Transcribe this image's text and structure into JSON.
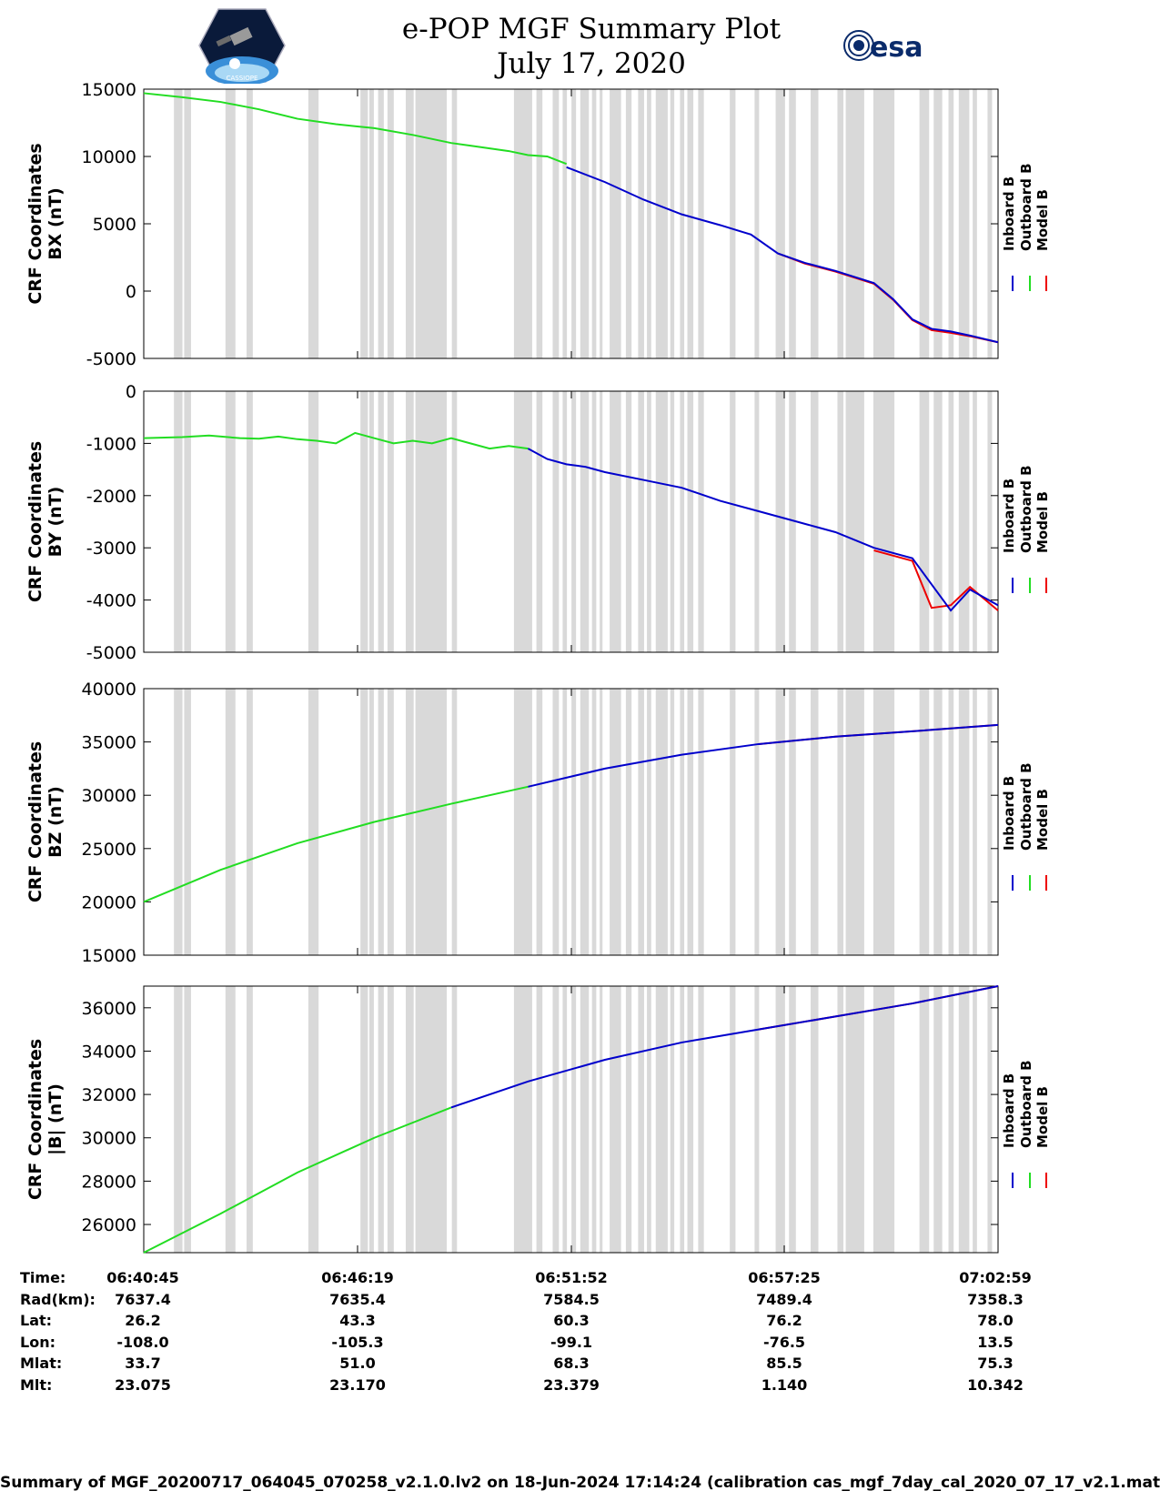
{
  "header": {
    "title": "e-POP MGF Summary Plot",
    "date": "July 17, 2020",
    "mission_logo_text": "CASSIOPE",
    "agency_logo_text": "esa"
  },
  "legend": {
    "labels": [
      "Inboard B",
      "Outboard B",
      "Model B"
    ],
    "colors": [
      "#0000cc",
      "#22dd22",
      "#ee0000"
    ]
  },
  "gap_color": "#d9d9d9",
  "data_gaps_minutes": [
    [
      1.06,
      1.36
    ],
    [
      1.42,
      1.66
    ],
    [
      2.87,
      3.22
    ],
    [
      3.61,
      3.83
    ],
    [
      5.78,
      6.14
    ],
    [
      7.61,
      7.87
    ],
    [
      7.92,
      8.08
    ],
    [
      8.23,
      8.43
    ],
    [
      8.56,
      8.78
    ],
    [
      9.2,
      9.48
    ],
    [
      9.54,
      10.64
    ],
    [
      10.82,
      11.0
    ],
    [
      13.0,
      13.64
    ],
    [
      13.79,
      14.0
    ],
    [
      14.36,
      14.58
    ],
    [
      14.71,
      14.86
    ],
    [
      15.02,
      15.18
    ],
    [
      15.33,
      15.63
    ],
    [
      15.74,
      15.89
    ],
    [
      16.01,
      16.11
    ],
    [
      16.36,
      16.76
    ],
    [
      16.93,
      17.13
    ],
    [
      17.36,
      17.57
    ],
    [
      17.67,
      17.82
    ],
    [
      17.98,
      18.4
    ],
    [
      18.49,
      18.63
    ],
    [
      18.83,
      18.98
    ],
    [
      19.09,
      19.3
    ],
    [
      19.47,
      19.67
    ],
    [
      20.58,
      20.78
    ],
    [
      21.45,
      21.61
    ],
    [
      22.19,
      22.52
    ],
    [
      22.66,
      22.9
    ],
    [
      23.42,
      23.69
    ],
    [
      24.36,
      24.57
    ],
    [
      24.65,
      25.3
    ],
    [
      25.62,
      26.36
    ],
    [
      27.24,
      27.58
    ],
    [
      27.74,
      28.04
    ],
    [
      28.26,
      28.44
    ],
    [
      28.62,
      28.99
    ],
    [
      29.11,
      29.26
    ],
    [
      29.63,
      29.79
    ]
  ],
  "chart_data": [
    {
      "type": "line",
      "title": "e-POP MGF Summary Plot",
      "ylabel": [
        "CRF Coordinates",
        "BX (nT)"
      ],
      "ylim": [
        -5000,
        15000
      ],
      "yticks": [
        -5000,
        0,
        5000,
        10000,
        15000
      ],
      "xlim": [
        0,
        22.23
      ],
      "series": [
        {
          "name": "Outboard B",
          "color": "#22dd22",
          "x": [
            0,
            1,
            2,
            3,
            4,
            5,
            5.5,
            6,
            7,
            8,
            8.5,
            9,
            9.5,
            10,
            10.5,
            11
          ],
          "y": [
            14700,
            14400,
            14050,
            13500,
            12800,
            12400,
            12250,
            12100,
            11600,
            11000,
            10800,
            10600,
            10400,
            10100,
            10000,
            9450
          ]
        },
        {
          "name": "Inboard B",
          "color": "#0000cc",
          "x": [
            11,
            12,
            13,
            14,
            15,
            15.8,
            16.5,
            17.2,
            18,
            19,
            19.5,
            20,
            20.5,
            21,
            21.5,
            22.23
          ],
          "y": [
            9200,
            8100,
            6800,
            5700,
            4900,
            4200,
            2800,
            2100,
            1500,
            600,
            -600,
            -2100,
            -2800,
            -3000,
            -3300,
            -3800
          ]
        },
        {
          "name": "Model B",
          "color": "#ee0000",
          "x": [
            16.5,
            17.2,
            18,
            19,
            19.5,
            20,
            20.5,
            21,
            21.5,
            22.23
          ],
          "y": [
            2800,
            2050,
            1450,
            550,
            -650,
            -2150,
            -2900,
            -3100,
            -3350,
            -3800
          ]
        }
      ]
    },
    {
      "type": "line",
      "ylabel": [
        "CRF Coordinates",
        "BY (nT)"
      ],
      "ylim": [
        -5000,
        0
      ],
      "yticks": [
        -5000,
        -4000,
        -3000,
        -2000,
        -1000,
        0
      ],
      "xlim": [
        0,
        22.23
      ],
      "series": [
        {
          "name": "Outboard B",
          "color": "#22dd22",
          "x": [
            0,
            1,
            1.7,
            2.5,
            3,
            3.5,
            4,
            4.5,
            5,
            5.5,
            6,
            6.5,
            7,
            7.5,
            8,
            8.5,
            9,
            9.5,
            10
          ],
          "y": [
            -900,
            -880,
            -850,
            -900,
            -910,
            -870,
            -920,
            -950,
            -1000,
            -800,
            -900,
            -1000,
            -950,
            -1000,
            -900,
            -1000,
            -1100,
            -1050,
            -1100
          ]
        },
        {
          "name": "Inboard B",
          "color": "#0000cc",
          "x": [
            10,
            10.5,
            11,
            11.5,
            12,
            13,
            14,
            15,
            16,
            16.5,
            17,
            17.5,
            18,
            19,
            20,
            21,
            21.5,
            22.23
          ],
          "y": [
            -1100,
            -1300,
            -1400,
            -1450,
            -1550,
            -1700,
            -1850,
            -2100,
            -2300,
            -2400,
            -2500,
            -2600,
            -2700,
            -3000,
            -3200,
            -4200,
            -3800,
            -4100
          ]
        },
        {
          "name": "Model B",
          "color": "#ee0000",
          "x": [
            19,
            20,
            20.5,
            21,
            21.5,
            22.23
          ],
          "y": [
            -3050,
            -3250,
            -4150,
            -4100,
            -3750,
            -4200
          ]
        }
      ]
    },
    {
      "type": "line",
      "ylabel": [
        "CRF Coordinates",
        "BZ (nT)"
      ],
      "ylim": [
        15000,
        40000
      ],
      "yticks": [
        15000,
        20000,
        25000,
        30000,
        35000,
        40000
      ],
      "xlim": [
        0,
        22.23
      ],
      "series": [
        {
          "name": "Outboard B",
          "color": "#22dd22",
          "x": [
            0,
            2,
            4,
            6,
            8,
            10
          ],
          "y": [
            20000,
            23000,
            25500,
            27500,
            29200,
            30800
          ]
        },
        {
          "name": "Inboard B",
          "color": "#0000cc",
          "x": [
            10,
            12,
            14,
            16,
            18,
            20,
            22.23
          ],
          "y": [
            30800,
            32500,
            33800,
            34800,
            35500,
            36000,
            36600
          ]
        },
        {
          "name": "Model B",
          "color": "#ee0000",
          "x": [
            16,
            18,
            20,
            22.23
          ],
          "y": [
            34800,
            35500,
            36000,
            36600
          ]
        }
      ]
    },
    {
      "type": "line",
      "ylabel": [
        "CRF Coordinates",
        "|B| (nT)"
      ],
      "ylim": [
        24700,
        37000
      ],
      "yticks": [
        26000,
        28000,
        30000,
        32000,
        34000,
        36000
      ],
      "xlim": [
        0,
        22.23
      ],
      "series": [
        {
          "name": "Outboard B",
          "color": "#22dd22",
          "x": [
            0,
            2,
            4,
            6,
            8
          ],
          "y": [
            24700,
            26500,
            28400,
            30000,
            31400
          ]
        },
        {
          "name": "Inboard B",
          "color": "#0000cc",
          "x": [
            8,
            10,
            12,
            14,
            16,
            18,
            20,
            22.23
          ],
          "y": [
            31400,
            32600,
            33600,
            34400,
            35000,
            35600,
            36200,
            37000
          ]
        },
        {
          "name": "Model B",
          "color": "#ee0000",
          "x": [
            16,
            18,
            20,
            22.23
          ],
          "y": [
            35000,
            35600,
            36200,
            37000
          ]
        }
      ]
    }
  ],
  "ephemeris": {
    "row_labels": [
      "Time:",
      "Rad(km):",
      "Lat:",
      "Lon:",
      "Mlat:",
      "Mlt:"
    ],
    "columns": [
      [
        "06:40:45",
        "7637.4",
        "26.2",
        "-108.0",
        "33.7",
        "23.075"
      ],
      [
        "06:46:19",
        "7635.4",
        "43.3",
        "-105.3",
        "51.0",
        "23.170"
      ],
      [
        "06:51:52",
        "7584.5",
        "60.3",
        "-99.1",
        "68.3",
        "23.379"
      ],
      [
        "06:57:25",
        "7489.4",
        "76.2",
        "-76.5",
        "85.5",
        "1.140"
      ],
      [
        "07:02:59",
        "7358.3",
        "78.0",
        "13.5",
        "75.3",
        "10.342"
      ]
    ]
  },
  "footer": "Summary of MGF_20200717_064045_070258_v2.1.0.lv2 on 18-Jun-2024 17:14:24 (calibration cas_mgf_7day_cal_2020_07_17_v2.1.mat )"
}
